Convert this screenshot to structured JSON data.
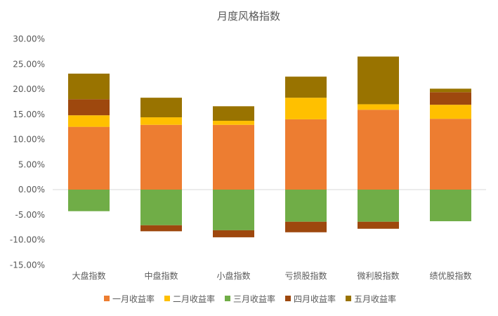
{
  "chart_data": {
    "type": "bar",
    "stacked": true,
    "title": "月度风格指数",
    "xlabel": "",
    "ylabel": "",
    "ylim": [
      -15,
      30
    ],
    "yticks": [
      30,
      25,
      20,
      15,
      10,
      5,
      0,
      -5,
      -10,
      -15
    ],
    "ytick_labels": [
      "30.00%",
      "25.00%",
      "20.00%",
      "15.00%",
      "10.00%",
      "5.00%",
      "0.00%",
      "-5.00%",
      "-10.00%",
      "-15.00%"
    ],
    "categories": [
      "大盘指数",
      "中盘指数",
      "小盘指数",
      "亏损股指数",
      "微利股指数",
      "绩优股指数"
    ],
    "series": [
      {
        "name": "一月收益率",
        "color": "#ED7D31",
        "values": [
          12.5,
          12.9,
          12.9,
          14.0,
          15.9,
          14.1
        ]
      },
      {
        "name": "二月收益率",
        "color": "#FFC000",
        "values": [
          2.3,
          1.5,
          0.8,
          4.3,
          1.1,
          2.8
        ]
      },
      {
        "name": "三月收益率",
        "color": "#70AD47",
        "values": [
          -4.3,
          -7.1,
          -8.1,
          -6.4,
          -6.4,
          -6.3
        ]
      },
      {
        "name": "四月收益率",
        "color": "#9E480E",
        "values": [
          3.2,
          -1.2,
          -1.4,
          -2.1,
          -1.4,
          2.5
        ]
      },
      {
        "name": "五月收益率",
        "color": "#997300",
        "values": [
          5.1,
          3.9,
          2.9,
          4.2,
          9.5,
          0.7
        ]
      }
    ],
    "grid": false,
    "legend_position": "bottom"
  }
}
